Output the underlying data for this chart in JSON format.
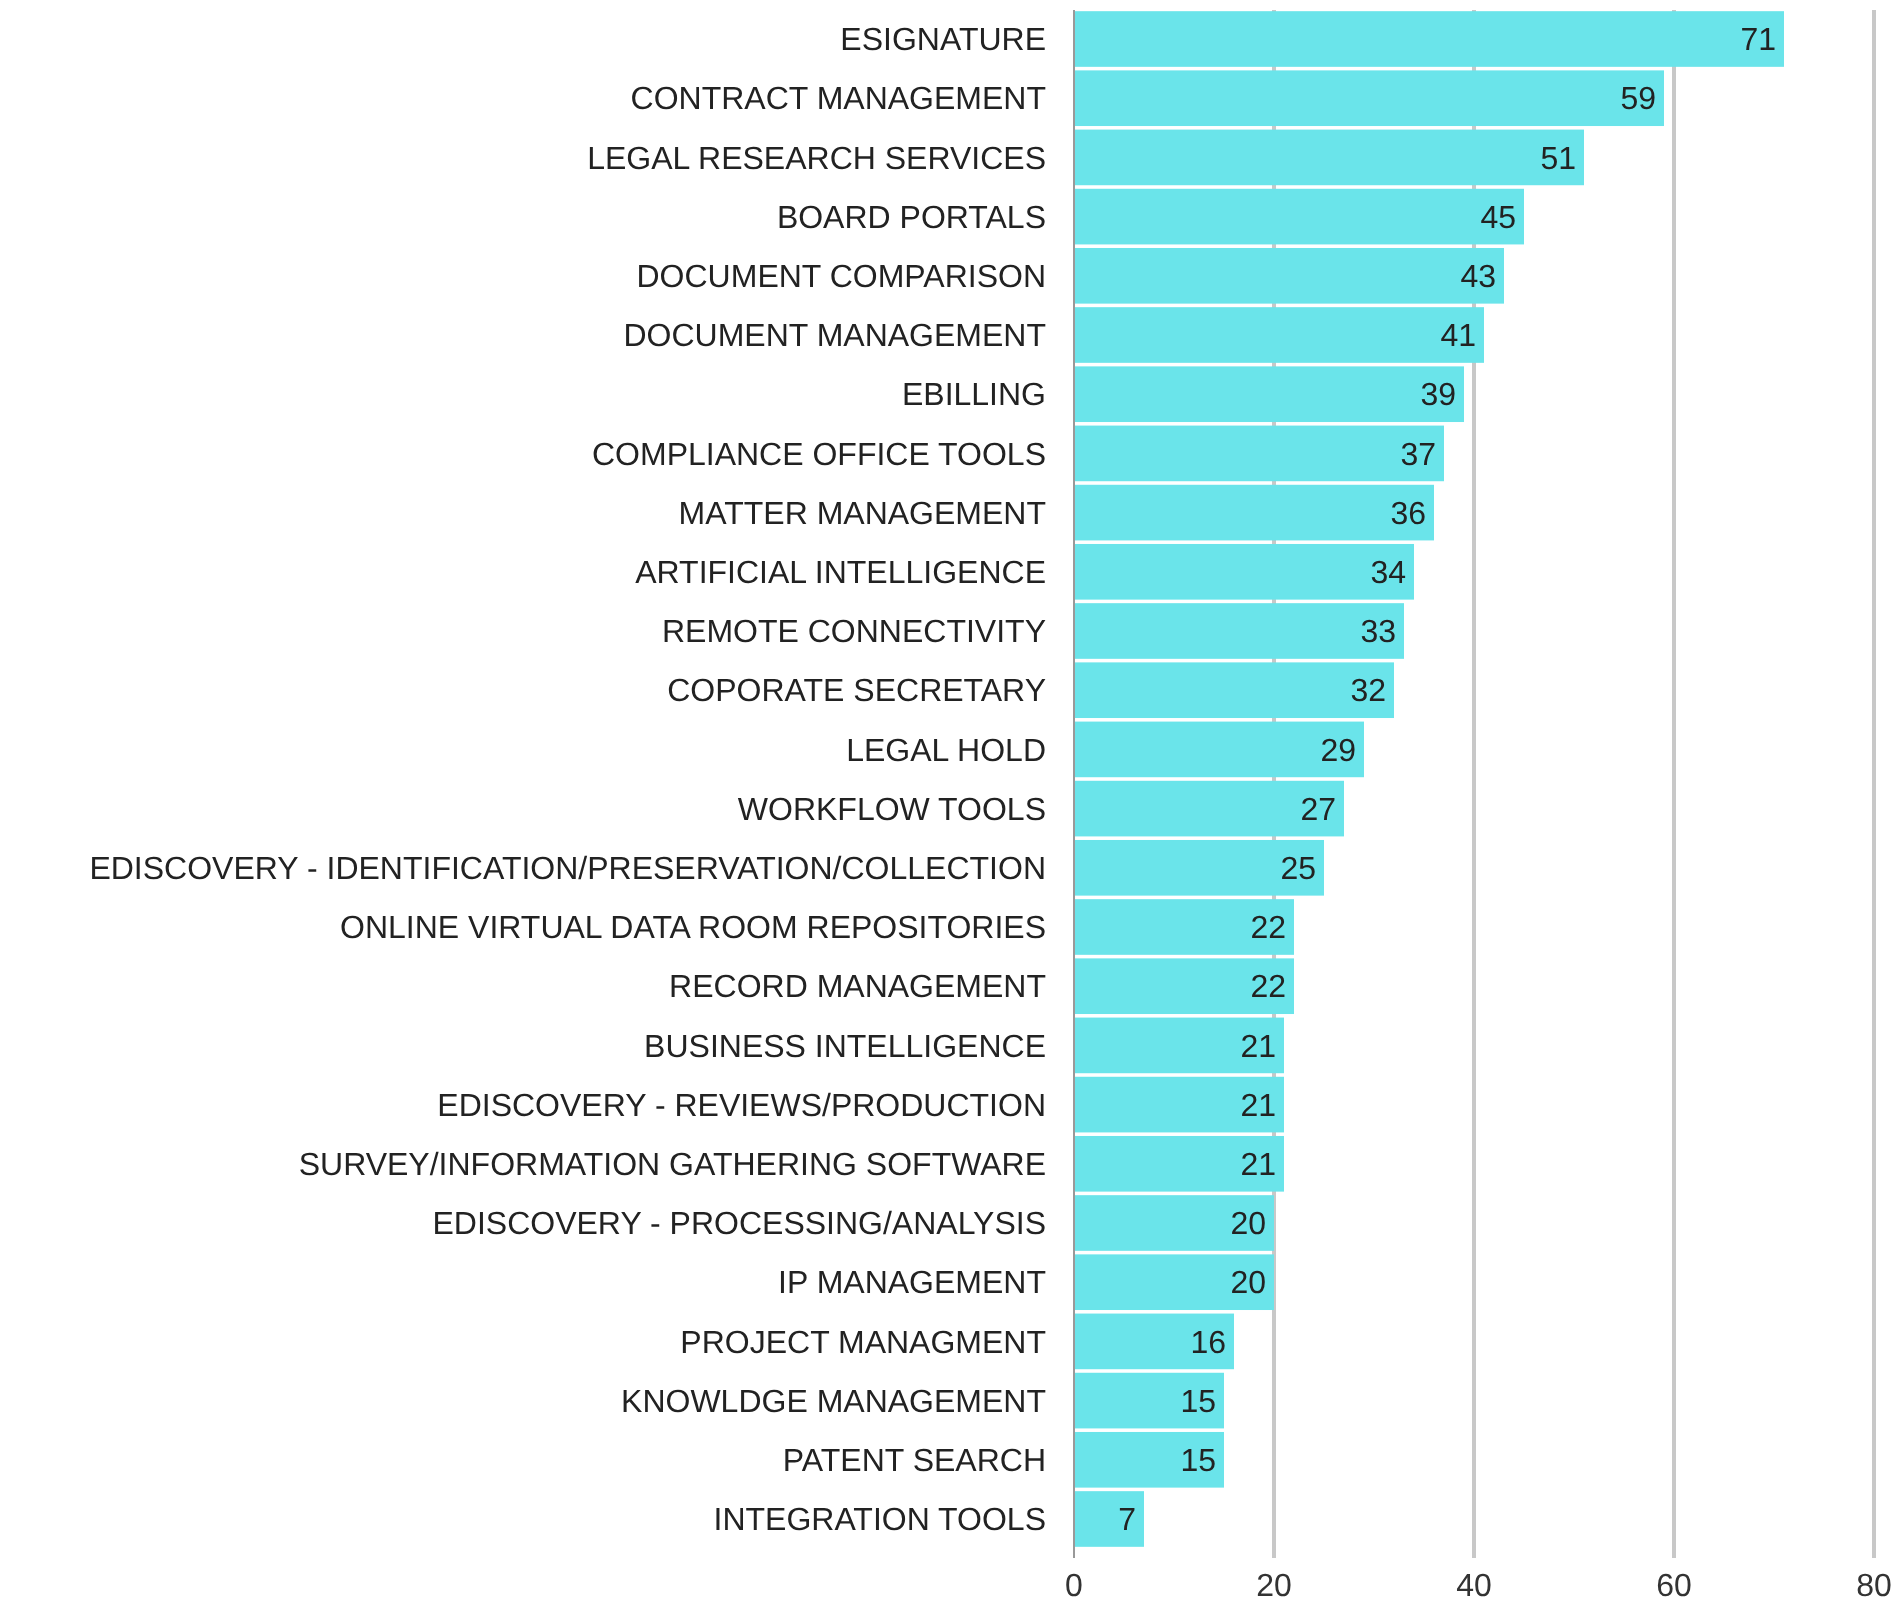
{
  "chart_data": {
    "type": "bar",
    "orientation": "horizontal",
    "categories": [
      "ESIGNATURE",
      "CONTRACT MANAGEMENT",
      "LEGAL RESEARCH SERVICES",
      "BOARD PORTALS",
      "DOCUMENT COMPARISON",
      "DOCUMENT MANAGEMENT",
      "EBILLING",
      "COMPLIANCE OFFICE TOOLS",
      "MATTER MANAGEMENT",
      "ARTIFICIAL INTELLIGENCE",
      "REMOTE CONNECTIVITY",
      "COPORATE SECRETARY",
      "LEGAL HOLD",
      "WORKFLOW TOOLS",
      "EDISCOVERY - IDENTIFICATION/PRESERVATION/COLLECTION",
      "ONLINE VIRTUAL DATA ROOM REPOSITORIES",
      "RECORD MANAGEMENT",
      "BUSINESS INTELLIGENCE",
      "EDISCOVERY - REVIEWS/PRODUCTION",
      "SURVEY/INFORMATION GATHERING SOFTWARE",
      "EDISCOVERY - PROCESSING/ANALYSIS",
      "IP MANAGEMENT",
      "PROJECT MANAGMENT",
      "KNOWLDGE MANAGEMENT",
      "PATENT SEARCH",
      "INTEGRATION TOOLS"
    ],
    "values": [
      71,
      59,
      51,
      45,
      43,
      41,
      39,
      37,
      36,
      34,
      33,
      32,
      29,
      27,
      25,
      22,
      22,
      21,
      21,
      21,
      20,
      20,
      16,
      15,
      15,
      7
    ],
    "color": "#6ae4ea",
    "xlim": [
      0,
      80
    ],
    "xticks": [
      0,
      20,
      40,
      60,
      80
    ],
    "grid": "x",
    "data_labels": true
  }
}
